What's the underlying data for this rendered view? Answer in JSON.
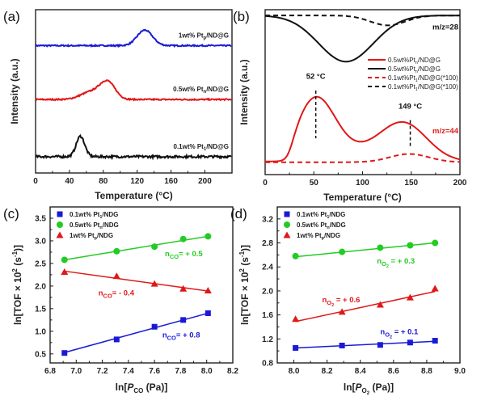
{
  "chart_data": [
    {
      "id": "a",
      "panel_label": "(a)",
      "type": "line",
      "xlabel": "Temperature (°C)",
      "ylabel": "Intensity (a.u.)",
      "xlim": [
        0,
        232
      ],
      "xticks": [
        0,
        40,
        80,
        120,
        160,
        200
      ],
      "yticks": [],
      "grid": false,
      "series": [
        {
          "name": "1wt% Pt_p/ND@G",
          "label_main": "1wt% Pt",
          "label_sub": "p",
          "label_tail": "/ND@G",
          "color": "#1a1ad6",
          "offset": 0.78,
          "peaks": [
            {
              "center": 129,
              "width": 9,
              "height": 0.095
            }
          ],
          "noise": 0.004
        },
        {
          "name": "0.5wt% Pt_n/ND@G",
          "label_main": "0.5wt% Pt",
          "label_sub": "n",
          "label_tail": "/ND@G",
          "color": "#e01818",
          "offset": 0.45,
          "peaks": [
            {
              "center": 85,
              "width": 9,
              "height": 0.105
            },
            {
              "center": 65,
              "width": 12,
              "height": 0.045
            }
          ],
          "noise": 0.004
        },
        {
          "name": "0.1wt% Pt_1/ND@G",
          "label_main": "0.1wt% Pt",
          "label_sub": "1",
          "label_tail": "/ND@G",
          "color": "#111111",
          "offset": 0.1,
          "peaks": [
            {
              "center": 53,
              "width": 5,
              "height": 0.125
            }
          ],
          "noise": 0.007
        }
      ]
    },
    {
      "id": "b",
      "panel_label": "(b)",
      "type": "line",
      "xlabel": "Temperature (°C)",
      "ylabel": "Intensity (a.u.)",
      "xlim": [
        0,
        200
      ],
      "xticks": [
        0,
        50,
        100,
        150,
        200
      ],
      "yticks": [],
      "grid": false,
      "legend": {
        "placement": "center-right",
        "entries": [
          {
            "label": "0.5wt%Pt_n/ND@G",
            "main": "0.5wt%Pt",
            "sub": "n",
            "tail": "/ND@G",
            "color": "#e01818",
            "dashed": false
          },
          {
            "label": "0.5wt%Pt_n/ND@G",
            "main": "0.5wt%Pt",
            "sub": "n",
            "tail": "/ND@G",
            "color": "#111111",
            "dashed": false
          },
          {
            "label": "0.1wt%Pt_1/ND@G(*100)",
            "main": "0.1wt%Pt",
            "sub": "1",
            "tail": "/ND@G(*100)",
            "color": "#e01818",
            "dashed": true
          },
          {
            "label": "0.1wt%Pt_1/ND@G(*100)",
            "main": "0.1wt%Pt",
            "sub": "1",
            "tail": "/ND@G(*100)",
            "color": "#111111",
            "dashed": true
          }
        ]
      },
      "annotations": [
        {
          "text": "m/z=28",
          "color": "#111111",
          "x": 196,
          "y": 0.88
        },
        {
          "text": "m/z=44",
          "color": "#e01818",
          "x": 196,
          "y": 0.25
        },
        {
          "text": "52 °C",
          "color": "#111111",
          "x": 52,
          "y": 0.58,
          "vline_from": 0.51,
          "vline_to": 0.22
        },
        {
          "text": "149 °C",
          "color": "#111111",
          "x": 149,
          "y": 0.4,
          "vline_from": 0.33,
          "vline_to": 0.17
        }
      ],
      "series": [
        {
          "name": "0.5wt%Pt_n/ND@G m/z=44",
          "color": "#e01818",
          "dashed": false,
          "baseline": 0.08,
          "start": 18,
          "peaks": [
            {
              "center": 52,
              "width": 20,
              "height": 0.38
            },
            {
              "center": 142,
              "width": 24,
              "height": 0.23
            },
            {
              "center": 95,
              "width": 25,
              "height": 0.05
            }
          ]
        },
        {
          "name": "0.5wt%Pt_n/ND@G m/z=28",
          "color": "#111111",
          "dashed": false,
          "baseline": 0.965,
          "dips": [
            {
              "center": 83,
              "width": 28,
              "depth": 0.28
            }
          ]
        },
        {
          "name": "0.1wt%Pt_1/ND@G(*100) m/z=44",
          "color": "#e01818",
          "dashed": true,
          "baseline": 0.075,
          "peaks": [
            {
              "center": 148,
              "width": 20,
              "height": 0.05
            }
          ]
        },
        {
          "name": "0.1wt%Pt_1/ND@G(*100) m/z=28",
          "color": "#111111",
          "dashed": true,
          "baseline": 0.965,
          "dips": [
            {
              "center": 126,
              "width": 18,
              "depth": 0.06
            }
          ]
        }
      ]
    },
    {
      "id": "c",
      "panel_label": "(c)",
      "type": "scatter",
      "xlabel": "ln[P_CO (Pa)]",
      "xlabel_parts": {
        "pre": "ln[",
        "italic": "P",
        "sub": "CO",
        "post": " (Pa)]"
      },
      "ylabel": "ln[TOF × 10^2 (s^-1)]",
      "xlim": [
        6.8,
        8.2
      ],
      "ylim": [
        0.3,
        3.75
      ],
      "xticks": [
        6.8,
        7.0,
        7.2,
        7.4,
        7.6,
        7.8,
        8.0,
        8.2
      ],
      "yticks": [
        0.5,
        1.0,
        1.5,
        2.0,
        2.5,
        3.0,
        3.5
      ],
      "tick_decimals": 1,
      "grid": false,
      "legend": {
        "placement": "top-left"
      },
      "series": [
        {
          "name": "0.1wt% Pt_1/NDG",
          "main": "0.1wt% Pt",
          "sub": "1",
          "tail": "/NDG",
          "marker": "square",
          "color": "#1a1ad6",
          "x": [
            6.91,
            7.31,
            7.6,
            7.82,
            8.01
          ],
          "y": [
            0.52,
            0.82,
            1.1,
            1.25,
            1.4
          ],
          "fit": [
            [
              6.91,
              0.53
            ],
            [
              8.01,
              1.4
            ]
          ],
          "annotation": {
            "pre": "n",
            "sub": "CO",
            "post": "= + 0.8",
            "x": 7.66,
            "y": 0.86
          }
        },
        {
          "name": "0.5wt% Pt_n/NDG",
          "main": "0.5wt% Pt",
          "sub": "n",
          "tail": "/NDG",
          "marker": "circle",
          "color": "#22cc22",
          "x": [
            6.91,
            7.31,
            7.6,
            7.82,
            8.01
          ],
          "y": [
            2.58,
            2.77,
            2.87,
            3.04,
            3.1
          ],
          "fit": [
            [
              6.91,
              2.58
            ],
            [
              8.01,
              3.1
            ]
          ],
          "annotation": {
            "pre": "n",
            "sub": "CO",
            "post": "= + 0.5",
            "x": 7.68,
            "y": 2.66
          }
        },
        {
          "name": "1wt% Pt_p/NDG",
          "main": "1wt% Pt",
          "sub": "p",
          "tail": "/NDG",
          "marker": "triangle",
          "color": "#e01818",
          "x": [
            6.91,
            7.31,
            7.6,
            7.82,
            8.01
          ],
          "y": [
            2.31,
            2.22,
            2.05,
            1.94,
            1.9
          ],
          "fit": [
            [
              6.91,
              2.33
            ],
            [
              8.01,
              1.89
            ]
          ],
          "annotation": {
            "pre": "n",
            "sub": "CO",
            "post": "= - 0.4",
            "x": 7.17,
            "y": 1.79
          }
        }
      ]
    },
    {
      "id": "d",
      "panel_label": "(d)",
      "type": "scatter",
      "xlabel": "ln[P_O2 (Pa)]",
      "xlabel_parts": {
        "pre": "ln[",
        "italic": "P",
        "sub": "O",
        "subsub": "2",
        "post": " (Pa)]"
      },
      "ylabel": "ln[TOF × 10^2 (s^-1)]",
      "xlim": [
        7.9,
        9.0
      ],
      "ylim": [
        0.8,
        3.4
      ],
      "xticks": [
        8.0,
        8.2,
        8.4,
        8.6,
        8.8,
        9.0
      ],
      "yticks": [
        0.8,
        1.2,
        1.6,
        2.0,
        2.4,
        2.8,
        3.2
      ],
      "tick_decimals": 1,
      "grid": false,
      "legend": {
        "placement": "top-left"
      },
      "series": [
        {
          "name": "0.1wt% Pt_1/NDG",
          "main": "0.1wt% Pt",
          "sub": "1",
          "tail": "/NDG",
          "marker": "square",
          "color": "#1a1ad6",
          "x": [
            8.01,
            8.29,
            8.52,
            8.7,
            8.85
          ],
          "y": [
            1.05,
            1.09,
            1.1,
            1.14,
            1.17
          ],
          "fit": [
            [
              8.01,
              1.05
            ],
            [
              8.85,
              1.16
            ]
          ],
          "annotation": {
            "pre": "n",
            "sub": "O",
            "subsub": "2",
            "post": " = + 0.1",
            "x": 8.52,
            "y": 1.28
          }
        },
        {
          "name": "0.5wt% Pt_n/NDG",
          "main": "0.5wt% Pt",
          "sub": "n",
          "tail": "/NDG",
          "marker": "circle",
          "color": "#22cc22",
          "x": [
            8.01,
            8.29,
            8.52,
            8.7,
            8.85
          ],
          "y": [
            2.58,
            2.65,
            2.72,
            2.76,
            2.8
          ],
          "fit": [
            [
              8.01,
              2.57
            ],
            [
              8.85,
              2.8
            ]
          ],
          "annotation": {
            "pre": "n",
            "sub": "O",
            "subsub": "2",
            "post": " = + 0.3",
            "x": 8.5,
            "y": 2.46
          }
        },
        {
          "name": "1wt% Pt_p/NDG",
          "main": "1wt% Pt",
          "sub": "p",
          "tail": "/NDG",
          "marker": "triangle",
          "color": "#e01818",
          "x": [
            8.01,
            8.29,
            8.52,
            8.7,
            8.85
          ],
          "y": [
            1.53,
            1.65,
            1.77,
            1.89,
            2.04
          ],
          "fit": [
            [
              8.01,
              1.49
            ],
            [
              8.85,
              1.99
            ]
          ],
          "annotation": {
            "pre": "n",
            "sub": "O",
            "subsub": "2",
            "post": " = + 0.6",
            "x": 8.17,
            "y": 1.81
          }
        }
      ]
    }
  ]
}
